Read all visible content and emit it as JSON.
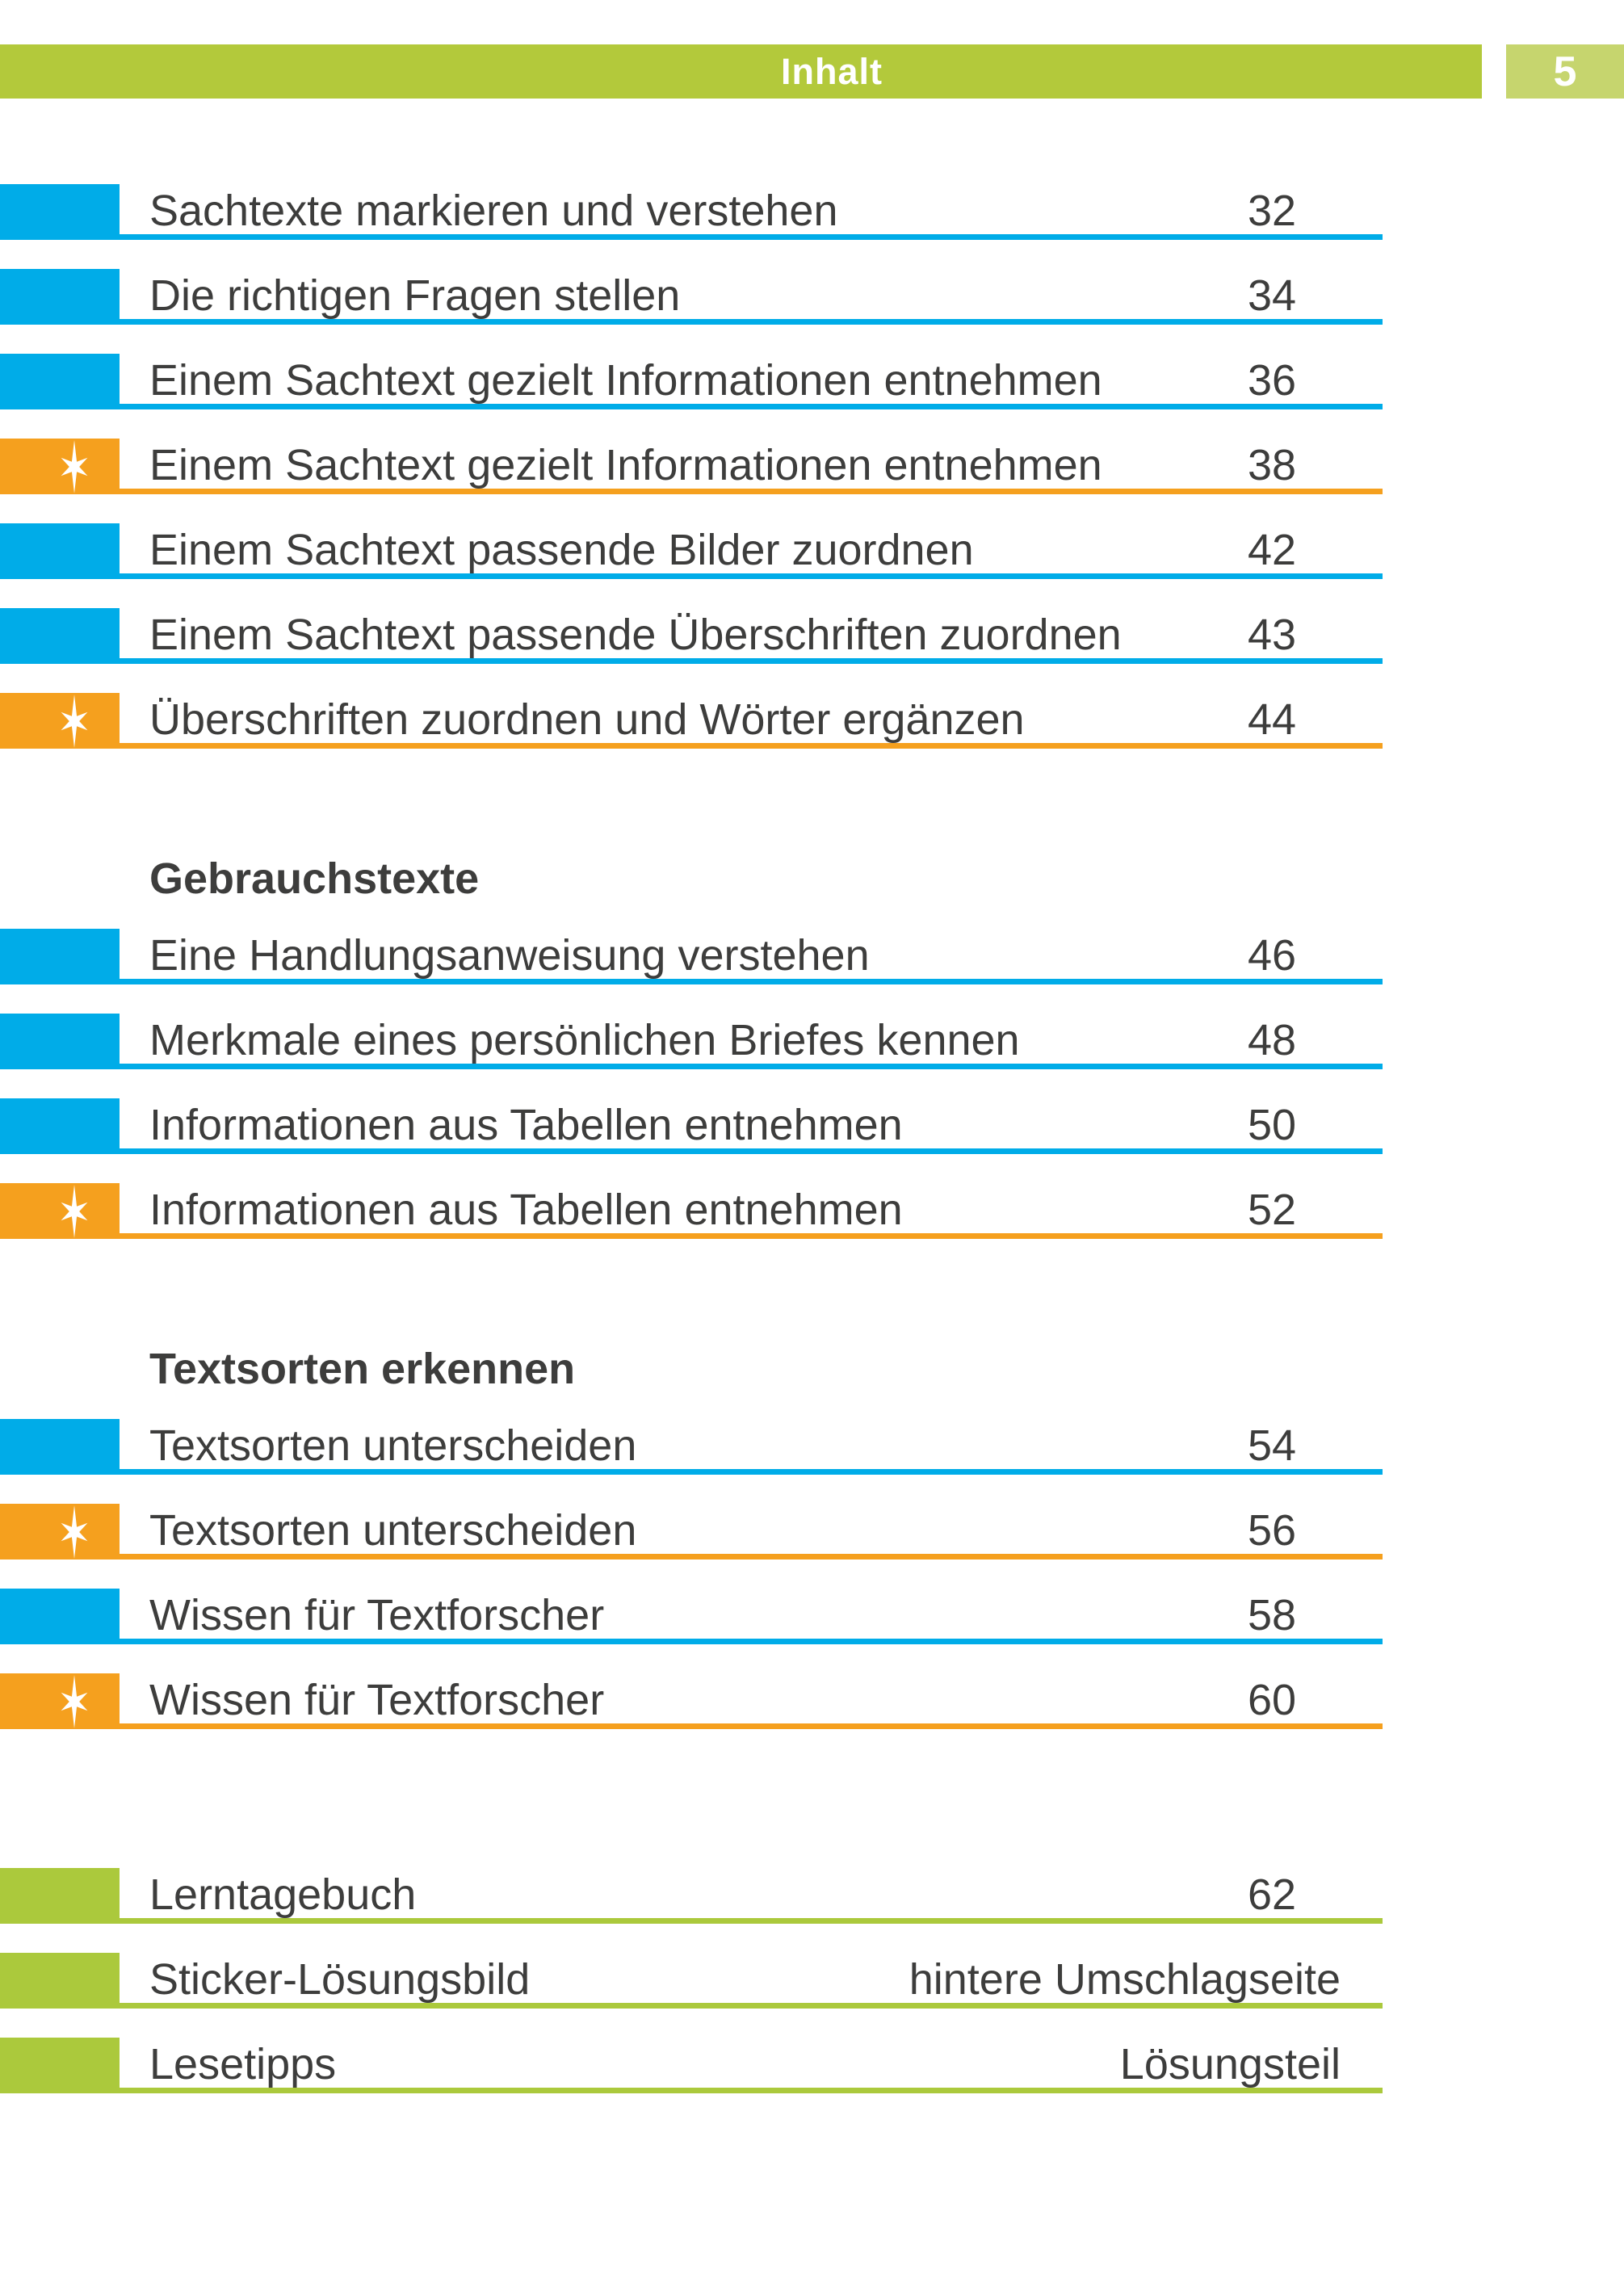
{
  "header": {
    "title": "Inhalt",
    "page_number": "5"
  },
  "colors": {
    "blue": "#00ACE8",
    "orange": "#F5A01E",
    "green": "#ABC93C",
    "header_green": "#B3C93B",
    "box_green": "#C6D56E",
    "text": "#3D3D3C"
  },
  "icons": {
    "marked_row": "star-icon (white six-pointed star)"
  },
  "sections": [
    {
      "heading": "",
      "items": [
        {
          "label": "Sachtexte markieren und verstehen",
          "value": "32",
          "color": "blue",
          "star": false
        },
        {
          "label": "Die richtigen Fragen stellen",
          "value": "34",
          "color": "blue",
          "star": false
        },
        {
          "label": "Einem Sachtext gezielt Informationen entnehmen",
          "value": "36",
          "color": "blue",
          "star": false
        },
        {
          "label": "Einem Sachtext gezielt Informationen entnehmen",
          "value": "38",
          "color": "orange",
          "star": true
        },
        {
          "label": "Einem Sachtext passende Bilder zuordnen",
          "value": "42",
          "color": "blue",
          "star": false
        },
        {
          "label": "Einem Sachtext passende Überschriften zuordnen",
          "value": "43",
          "color": "blue",
          "star": false
        },
        {
          "label": "Überschriften zuordnen und Wörter ergänzen",
          "value": "44",
          "color": "orange",
          "star": true
        }
      ]
    },
    {
      "heading": "Gebrauchstexte",
      "items": [
        {
          "label": "Eine Handlungsanweisung verstehen",
          "value": "46",
          "color": "blue",
          "star": false
        },
        {
          "label": "Merkmale eines persönlichen Briefes kennen",
          "value": "48",
          "color": "blue",
          "star": false
        },
        {
          "label": "Informationen aus Tabellen entnehmen",
          "value": "50",
          "color": "blue",
          "star": false
        },
        {
          "label": "Informationen aus Tabellen entnehmen",
          "value": "52",
          "color": "orange",
          "star": true
        }
      ]
    },
    {
      "heading": "Textsorten erkennen",
      "items": [
        {
          "label": "Textsorten unterscheiden",
          "value": "54",
          "color": "blue",
          "star": false
        },
        {
          "label": "Textsorten unterscheiden",
          "value": "56",
          "color": "orange",
          "star": true
        },
        {
          "label": "Wissen für Textforscher",
          "value": "58",
          "color": "blue",
          "star": false
        },
        {
          "label": "Wissen für Textforscher",
          "value": "60",
          "color": "orange",
          "star": true
        }
      ]
    },
    {
      "heading": "",
      "items": [
        {
          "label": "Lerntagebuch",
          "value": "62",
          "color": "green",
          "star": false
        },
        {
          "label": "Sticker-Lösungsbild",
          "value": "hintere Umschlagseite",
          "color": "green",
          "star": false,
          "wide_value": true
        },
        {
          "label": "Lesetipps",
          "value": "Lösungsteil",
          "color": "green",
          "star": false,
          "wide_value": true
        }
      ]
    }
  ]
}
